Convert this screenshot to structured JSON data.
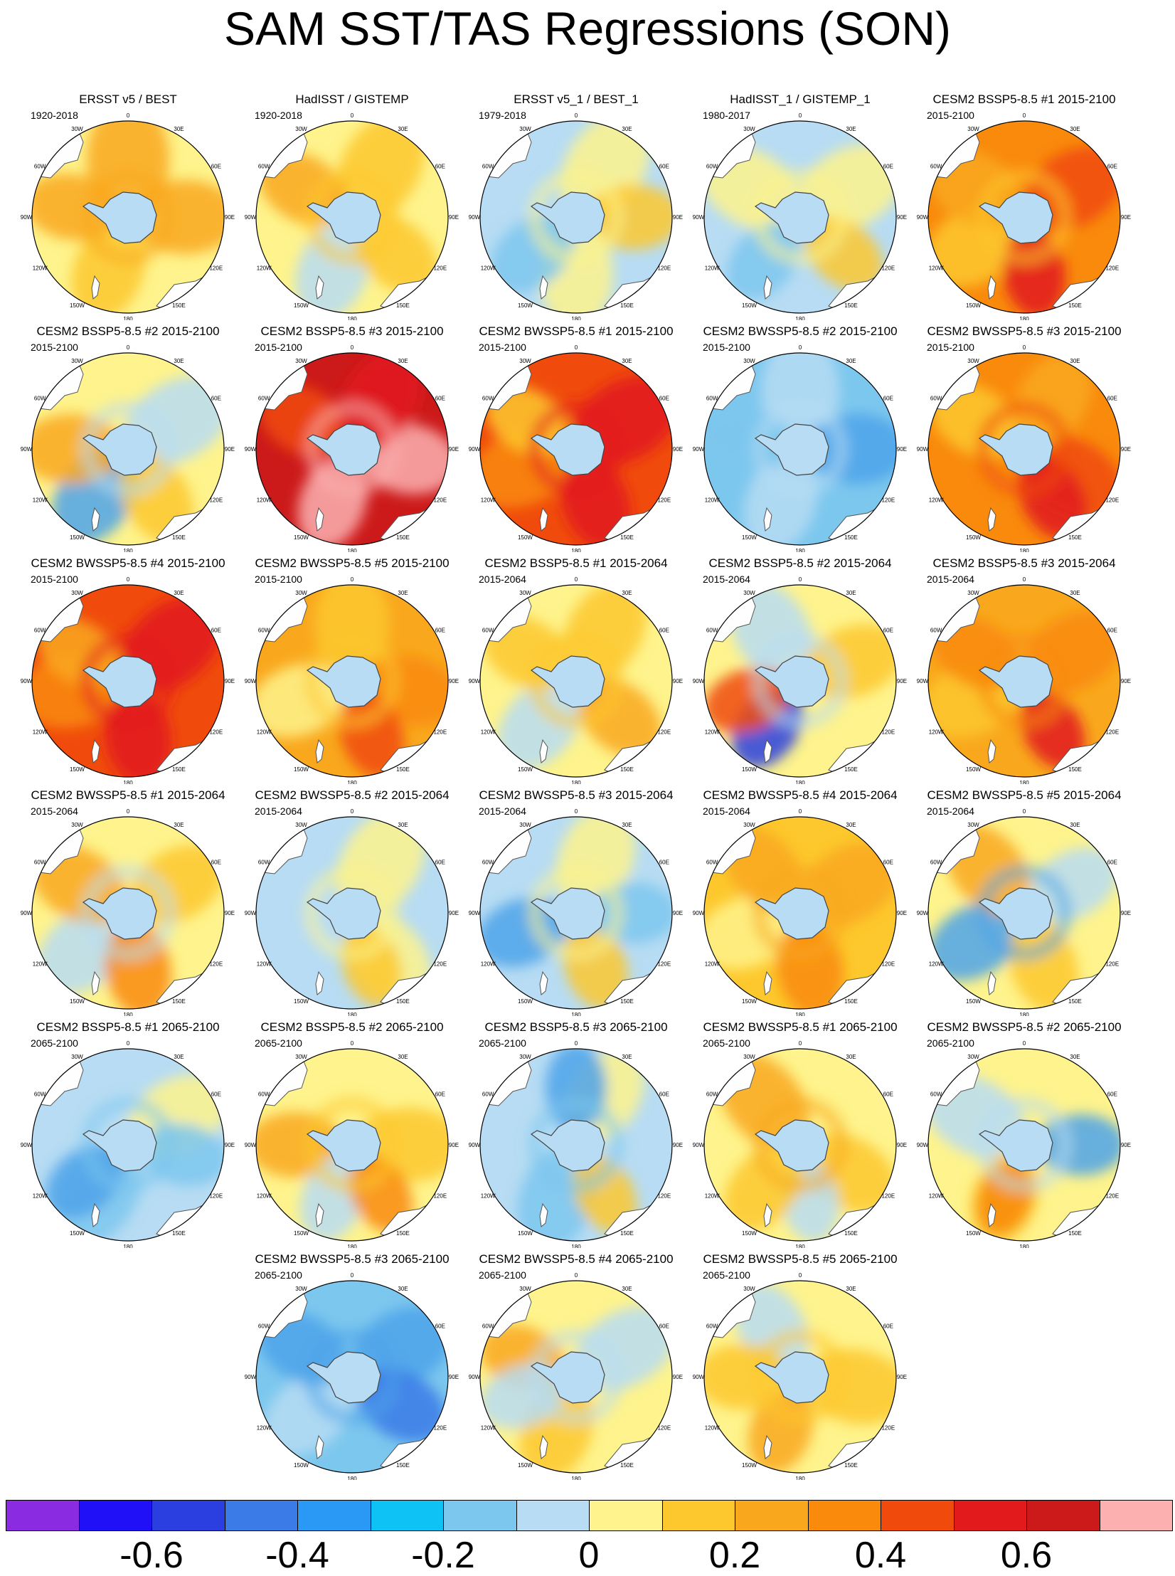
{
  "title": "SAM SST/TAS Regressions (SON)",
  "longitude_labels": [
    "0",
    "30E",
    "60E",
    "90E",
    "120E",
    "150E",
    "180",
    "150W",
    "120W",
    "90W",
    "60W",
    "30W"
  ],
  "panels": [
    {
      "title": "ERSST v5 / BEST",
      "period": "1920-2018",
      "base": "#fef38c",
      "blobs": [
        [
          "#f9a81d",
          0.0,
          1.0
        ],
        [
          "#f9a81d",
          90,
          0.8
        ],
        [
          "#fdc82d",
          200,
          0.7
        ],
        [
          "#f9a81d",
          280,
          0.6
        ]
      ]
    },
    {
      "title": "HadISST / GISTEMP",
      "period": "1920-2018",
      "base": "#fef38c",
      "blobs": [
        [
          "#fdc82d",
          30,
          0.9
        ],
        [
          "#b7dcf3",
          200,
          0.7
        ],
        [
          "#f9a81d",
          300,
          0.6
        ],
        [
          "#fdc82d",
          130,
          0.6
        ]
      ]
    },
    {
      "title": "ERSST v5_1 / BEST_1",
      "period": "1979-2018",
      "base": "#b7dcf3",
      "blobs": [
        [
          "#fef38c",
          30,
          0.9
        ],
        [
          "#fdc82d",
          90,
          0.6
        ],
        [
          "#fef38c",
          180,
          0.8
        ],
        [
          "#7cc7ee",
          230,
          0.6
        ]
      ]
    },
    {
      "title": "HadISST_1 / GISTEMP_1",
      "period": "1980-2017",
      "base": "#b7dcf3",
      "blobs": [
        [
          "#fef38c",
          60,
          0.9
        ],
        [
          "#fef38c",
          300,
          0.8
        ],
        [
          "#fdc82d",
          130,
          0.5
        ],
        [
          "#7cc7ee",
          220,
          0.5
        ]
      ]
    },
    {
      "title": "CESM2 BSSP5-8.5 #1 2015-2100",
      "period": "2015-2100",
      "base": "#f98a0c",
      "blobs": [
        [
          "#fdc82d",
          240,
          0.8
        ],
        [
          "#f04b0c",
          60,
          0.8
        ],
        [
          "#f9a81d",
          300,
          0.7
        ],
        [
          "#e21a1c",
          170,
          0.5
        ]
      ]
    },
    {
      "title": "CESM2 BSSP5-8.5 #2 2015-2100",
      "period": "2015-2100",
      "base": "#fef38c",
      "blobs": [
        [
          "#b7dcf3",
          60,
          0.9
        ],
        [
          "#4da3ea",
          215,
          0.8
        ],
        [
          "#f9a81d",
          270,
          0.7
        ],
        [
          "#fdc82d",
          150,
          0.6
        ]
      ]
    },
    {
      "title": "CESM2 BSSP5-8.5 #3 2015-2100",
      "period": "2015-2100",
      "base": "#cc1a1a",
      "blobs": [
        [
          "#fcb0b0",
          100,
          0.7
        ],
        [
          "#fcb0b0",
          200,
          0.6
        ],
        [
          "#f04b0c",
          300,
          0.6
        ],
        [
          "#e21a1c",
          30,
          0.8
        ]
      ]
    },
    {
      "title": "CESM2 BWSSP5-8.5 #1 2015-2100",
      "period": "2015-2100",
      "base": "#f04b0c",
      "blobs": [
        [
          "#e21a1c",
          60,
          0.9
        ],
        [
          "#f98a0c",
          250,
          0.8
        ],
        [
          "#e21a1c",
          160,
          0.6
        ],
        [
          "#fdc82d",
          300,
          0.5
        ]
      ]
    },
    {
      "title": "CESM2 BWSSP5-8.5 #2 2015-2100",
      "period": "2015-2100",
      "base": "#7cc7ee",
      "blobs": [
        [
          "#b7dcf3",
          0,
          0.9
        ],
        [
          "#4da3ea",
          90,
          0.7
        ],
        [
          "#b7dcf3",
          200,
          0.7
        ],
        [
          "#7cc7ee",
          280,
          0.6
        ]
      ]
    },
    {
      "title": "CESM2 BWSSP5-8.5 #3 2015-2100",
      "period": "2015-2100",
      "base": "#f98a0c",
      "blobs": [
        [
          "#f04b0c",
          120,
          0.8
        ],
        [
          "#fdc82d",
          300,
          0.6
        ],
        [
          "#e21a1c",
          150,
          0.5
        ],
        [
          "#f9a81d",
          30,
          0.7
        ]
      ]
    },
    {
      "title": "CESM2 BWSSP5-8.5 #4 2015-2100",
      "period": "2015-2100",
      "base": "#f04b0c",
      "blobs": [
        [
          "#e21a1c",
          50,
          0.9
        ],
        [
          "#f98a0c",
          260,
          0.8
        ],
        [
          "#e21a1c",
          170,
          0.6
        ],
        [
          "#f9a81d",
          300,
          0.5
        ]
      ]
    },
    {
      "title": "CESM2 BWSSP5-8.5 #5 2015-2100",
      "period": "2015-2100",
      "base": "#f9a81d",
      "blobs": [
        [
          "#fdc82d",
          0,
          0.8
        ],
        [
          "#fef38c",
          250,
          0.7
        ],
        [
          "#f98a0c",
          100,
          0.7
        ],
        [
          "#f04b0c",
          160,
          0.5
        ]
      ]
    },
    {
      "title": "CESM2 BSSP5-8.5 #1 2015-2064",
      "period": "2015-2064",
      "base": "#fef38c",
      "blobs": [
        [
          "#fdc82d",
          30,
          0.8
        ],
        [
          "#b7dcf3",
          220,
          0.7
        ],
        [
          "#f9a81d",
          130,
          0.6
        ],
        [
          "#fdc82d",
          300,
          0.6
        ]
      ]
    },
    {
      "title": "CESM2 BSSP5-8.5 #2 2015-2064",
      "period": "2015-2064",
      "base": "#fef38c",
      "blobs": [
        [
          "#b7dcf3",
          330,
          0.8
        ],
        [
          "#2b3fe0",
          215,
          0.5
        ],
        [
          "#f04b0c",
          250,
          0.5
        ],
        [
          "#fdc82d",
          70,
          0.7
        ]
      ]
    },
    {
      "title": "CESM2 BSSP5-8.5 #3 2015-2064",
      "period": "2015-2064",
      "base": "#f9a81d",
      "blobs": [
        [
          "#f98a0c",
          60,
          0.8
        ],
        [
          "#fdc82d",
          250,
          0.7
        ],
        [
          "#e21a1c",
          150,
          0.4
        ],
        [
          "#f98a0c",
          300,
          0.6
        ]
      ]
    },
    {
      "title": "CESM2 BWSSP5-8.5 #1 2015-2064",
      "period": "2015-2064",
      "base": "#fef38c",
      "blobs": [
        [
          "#b7dcf3",
          230,
          0.8
        ],
        [
          "#f9a81d",
          300,
          0.7
        ],
        [
          "#f98a0c",
          170,
          0.6
        ],
        [
          "#fdc82d",
          60,
          0.7
        ]
      ]
    },
    {
      "title": "CESM2 BWSSP5-8.5 #2 2015-2064",
      "period": "2015-2064",
      "base": "#b7dcf3",
      "blobs": [
        [
          "#fef38c",
          30,
          0.9
        ],
        [
          "#fef38c",
          140,
          0.7
        ],
        [
          "#fdc82d",
          160,
          0.4
        ],
        [
          "#b7dcf3",
          260,
          0.7
        ]
      ]
    },
    {
      "title": "CESM2 BWSSP5-8.5 #3 2015-2064",
      "period": "2015-2064",
      "base": "#b7dcf3",
      "blobs": [
        [
          "#fef38c",
          20,
          0.8
        ],
        [
          "#4da3ea",
          250,
          0.6
        ],
        [
          "#fdc82d",
          160,
          0.5
        ],
        [
          "#7cc7ee",
          90,
          0.5
        ]
      ]
    },
    {
      "title": "CESM2 BWSSP5-8.5 #4 2015-2064",
      "period": "2015-2064",
      "base": "#fdc82d",
      "blobs": [
        [
          "#f9a81d",
          60,
          0.8
        ],
        [
          "#fef38c",
          250,
          0.7
        ],
        [
          "#f98a0c",
          170,
          0.6
        ],
        [
          "#f9a81d",
          320,
          0.6
        ]
      ]
    },
    {
      "title": "CESM2 BWSSP5-8.5 #5 2015-2064",
      "period": "2015-2064",
      "base": "#fef38c",
      "blobs": [
        [
          "#4da3ea",
          240,
          0.7
        ],
        [
          "#f9a81d",
          320,
          0.7
        ],
        [
          "#fdc82d",
          160,
          0.6
        ],
        [
          "#b7dcf3",
          60,
          0.6
        ]
      ]
    },
    {
      "title": "CESM2 BSSP5-8.5 #1 2065-2100",
      "period": "2065-2100",
      "base": "#b7dcf3",
      "blobs": [
        [
          "#7cc7ee",
          210,
          0.8
        ],
        [
          "#fef38c",
          60,
          0.8
        ],
        [
          "#4da3ea",
          230,
          0.5
        ],
        [
          "#7cc7ee",
          100,
          0.5
        ]
      ]
    },
    {
      "title": "CESM2 BSSP5-8.5 #2 2065-2100",
      "period": "2065-2100",
      "base": "#fef38c",
      "blobs": [
        [
          "#fdc82d",
          90,
          0.8
        ],
        [
          "#f9a81d",
          270,
          0.6
        ],
        [
          "#b7dcf3",
          200,
          0.5
        ],
        [
          "#f98a0c",
          150,
          0.4
        ]
      ]
    },
    {
      "title": "CESM2 BSSP5-8.5 #3 2065-2100",
      "period": "2065-2100",
      "base": "#b7dcf3",
      "blobs": [
        [
          "#7cc7ee",
          200,
          0.8
        ],
        [
          "#fef38c",
          30,
          0.7
        ],
        [
          "#4da3ea",
          0,
          0.5
        ],
        [
          "#fdc82d",
          150,
          0.4
        ]
      ]
    },
    {
      "title": "CESM2 BWSSP5-8.5 #1 2065-2100",
      "period": "2065-2100",
      "base": "#fef38c",
      "blobs": [
        [
          "#f9a81d",
          320,
          0.8
        ],
        [
          "#fdc82d",
          120,
          0.7
        ],
        [
          "#b7dcf3",
          170,
          0.4
        ],
        [
          "#fdc82d",
          220,
          0.6
        ]
      ]
    },
    {
      "title": "CESM2 BWSSP5-8.5 #2 2065-2100",
      "period": "2065-2100",
      "base": "#fef38c",
      "blobs": [
        [
          "#b7dcf3",
          300,
          0.8
        ],
        [
          "#4da3ea",
          90,
          0.5
        ],
        [
          "#fdc82d",
          200,
          0.6
        ],
        [
          "#f98a0c",
          200,
          0.3
        ]
      ]
    },
    {
      "title": "CESM2 BWSSP5-8.5 #3 2065-2100",
      "period": "2065-2100",
      "base": "#7cc7ee",
      "blobs": [
        [
          "#4da3ea",
          60,
          0.8
        ],
        [
          "#3b7be8",
          120,
          0.6
        ],
        [
          "#b7dcf3",
          230,
          0.7
        ],
        [
          "#4da3ea",
          300,
          0.6
        ]
      ]
    },
    {
      "title": "CESM2 BWSSP5-8.5 #4 2065-2100",
      "period": "2065-2100",
      "base": "#fef38c",
      "blobs": [
        [
          "#b7dcf3",
          60,
          0.8
        ],
        [
          "#fdc82d",
          200,
          0.7
        ],
        [
          "#f9a81d",
          290,
          0.5
        ],
        [
          "#b7dcf3",
          250,
          0.5
        ]
      ]
    },
    {
      "title": "CESM2 BWSSP5-8.5 #5 2065-2100",
      "period": "2065-2100",
      "base": "#fef38c",
      "blobs": [
        [
          "#fdc82d",
          100,
          0.8
        ],
        [
          "#b7dcf3",
          330,
          0.6
        ],
        [
          "#f9a81d",
          200,
          0.5
        ],
        [
          "#fdc82d",
          270,
          0.6
        ]
      ]
    }
  ],
  "colorbar": {
    "colors": [
      "#8a2be2",
      "#1f10f8",
      "#2b3fe0",
      "#3b7be8",
      "#2a98f5",
      "#0ec2f5",
      "#7cc7ee",
      "#b7dcf3",
      "#fef38c",
      "#fdc82d",
      "#f9a81d",
      "#f98a0c",
      "#f04b0c",
      "#e21a1c",
      "#cc1a1a",
      "#fcb0b0"
    ],
    "labels": [
      {
        "text": "-0.6",
        "index": 1
      },
      {
        "text": "-0.4",
        "index": 3
      },
      {
        "text": "-0.2",
        "index": 5
      },
      {
        "text": "0",
        "index": 7
      },
      {
        "text": "0.2",
        "index": 9
      },
      {
        "text": "0.4",
        "index": 11
      },
      {
        "text": "0.6",
        "index": 13
      }
    ]
  }
}
